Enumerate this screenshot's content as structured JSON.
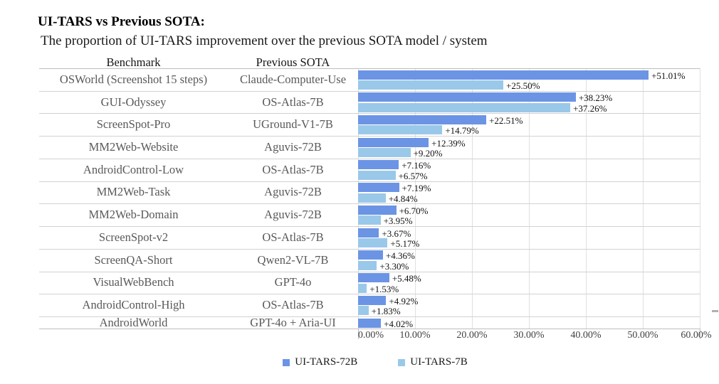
{
  "title": "UI-TARS vs Previous SOTA:",
  "subtitle": "The proportion of UI-TARS improvement over the previous SOTA model / system",
  "table": {
    "benchmark_header": "Benchmark",
    "previous_sota_header": "Previous SOTA"
  },
  "chart_data": {
    "type": "bar",
    "orientation": "horizontal",
    "title": "UI-TARS vs Previous SOTA:",
    "subtitle": "The proportion of UI-TARS improvement over the previous SOTA model / system",
    "xlabel": "",
    "ylabel": "",
    "xlim": [
      0,
      60
    ],
    "x_tick_labels": [
      "0.00%",
      "10.00%",
      "20.00%",
      "30.00%",
      "40.00%",
      "50.00%",
      "60.00%"
    ],
    "grid": true,
    "legend_position": "bottom",
    "categories": [
      "OSWorld (Screenshot 15 steps)",
      "GUI-Odyssey",
      "ScreenSpot-Pro",
      "MM2Web-Website",
      "AndroidControl-Low",
      "MM2Web-Task",
      "MM2Web-Domain",
      "ScreenSpot-v2",
      "ScreenQA-Short",
      "VisualWebBench",
      "AndroidControl-High",
      "AndroidWorld"
    ],
    "previous_sota": [
      "Claude-Computer-Use",
      "OS-Atlas-7B",
      "UGround-V1-7B",
      "Aguvis-72B",
      "OS-Atlas-7B",
      "Aguvis-72B",
      "Aguvis-72B",
      "OS-Atlas-7B",
      "Qwen2-VL-7B",
      "GPT-4o",
      "OS-Atlas-7B",
      "GPT-4o + Aria-UI"
    ],
    "series": [
      {
        "name": "UI-TARS-72B",
        "color": "#6C94E5",
        "values": [
          51.01,
          38.23,
          22.51,
          12.39,
          7.16,
          7.19,
          6.7,
          3.67,
          4.36,
          5.48,
          4.92,
          4.02
        ]
      },
      {
        "name": "UI-TARS-7B",
        "color": "#9AC8E9",
        "values": [
          25.5,
          37.26,
          14.79,
          9.2,
          6.57,
          4.84,
          3.95,
          5.17,
          3.3,
          1.53,
          1.83,
          null
        ]
      }
    ],
    "data_label_format": "+{value}%"
  }
}
